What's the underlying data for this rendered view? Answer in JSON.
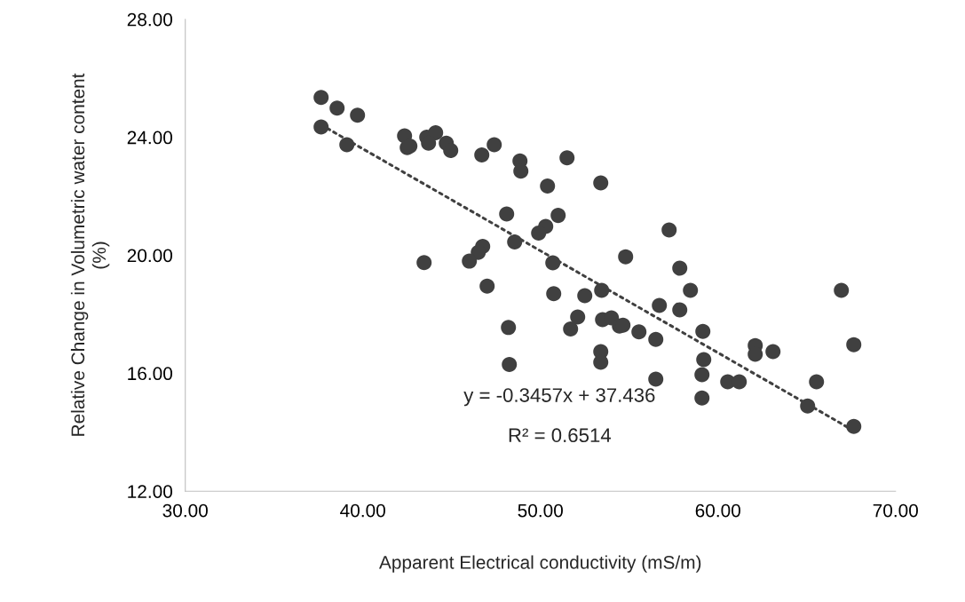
{
  "chart_data": {
    "type": "scatter",
    "xlabel": "Apparent Electrical conductivity (mS/m)",
    "ylabel": "Relative Change in Volumetric water content (%)",
    "xlim": [
      30,
      70
    ],
    "ylim": [
      12,
      28
    ],
    "xticks": [
      {
        "value": 30,
        "label": "30.00"
      },
      {
        "value": 40,
        "label": "40.00"
      },
      {
        "value": 50,
        "label": "50.00"
      },
      {
        "value": 60,
        "label": "60.00"
      },
      {
        "value": 70,
        "label": "70.00"
      }
    ],
    "yticks": [
      {
        "value": 12,
        "label": "12.00"
      },
      {
        "value": 16,
        "label": "16.00"
      },
      {
        "value": 20,
        "label": "20.00"
      },
      {
        "value": 24,
        "label": "24.00"
      },
      {
        "value": 28,
        "label": "28.00"
      }
    ],
    "grid": false,
    "legend": false,
    "marker": "circle",
    "series": [
      {
        "color": "#404040",
        "x": [
          37.65,
          38.55,
          39.7,
          37.65,
          39.1,
          42.35,
          42.5,
          42.65,
          43.6,
          44.1,
          43.7,
          44.7,
          44.95,
          46.7,
          47.4,
          48.85,
          48.9,
          51.5,
          50.4,
          53.4,
          48.1,
          50.3,
          51.0,
          49.9,
          48.55,
          46.75,
          46.5,
          46.0,
          43.45,
          47.0,
          50.7,
          50.75,
          52.5,
          53.45,
          48.2,
          48.25,
          52.1,
          51.7,
          53.5,
          54.0,
          54.45,
          54.65,
          53.4,
          53.4,
          54.8,
          57.25,
          57.85,
          58.45,
          56.7,
          57.85,
          55.55,
          56.5,
          59.15,
          56.5,
          59.2,
          59.1,
          59.1,
          60.55,
          61.2,
          62.1,
          62.1,
          63.1,
          66.95,
          67.65,
          65.55,
          65.05,
          67.65
        ],
        "values": [
          25.35,
          24.99,
          24.75,
          24.35,
          23.75,
          24.05,
          23.65,
          23.7,
          24.0,
          24.15,
          23.8,
          23.8,
          23.55,
          23.4,
          23.75,
          23.2,
          22.85,
          23.3,
          22.35,
          22.45,
          21.4,
          20.98,
          21.35,
          20.75,
          20.45,
          20.3,
          20.1,
          19.8,
          19.75,
          18.95,
          19.74,
          18.7,
          18.63,
          18.81,
          17.55,
          16.3,
          17.91,
          17.5,
          17.82,
          17.88,
          17.6,
          17.63,
          16.73,
          16.37,
          19.95,
          20.86,
          19.56,
          18.81,
          18.3,
          18.15,
          17.4,
          17.15,
          17.42,
          15.8,
          16.46,
          15.95,
          15.16,
          15.71,
          15.71,
          16.94,
          16.64,
          16.73,
          18.81,
          16.97,
          15.71,
          14.89,
          14.2
        ]
      },
      {
        "type": "line",
        "color": "#404040",
        "line_style": "dotted",
        "marker": "none",
        "x": [
          37.65,
          67.65
        ],
        "values": [
          24.42,
          14.05
        ]
      }
    ],
    "annotations": [
      "y = -0.3457x + 37.436",
      "R² = 0.6514"
    ]
  }
}
